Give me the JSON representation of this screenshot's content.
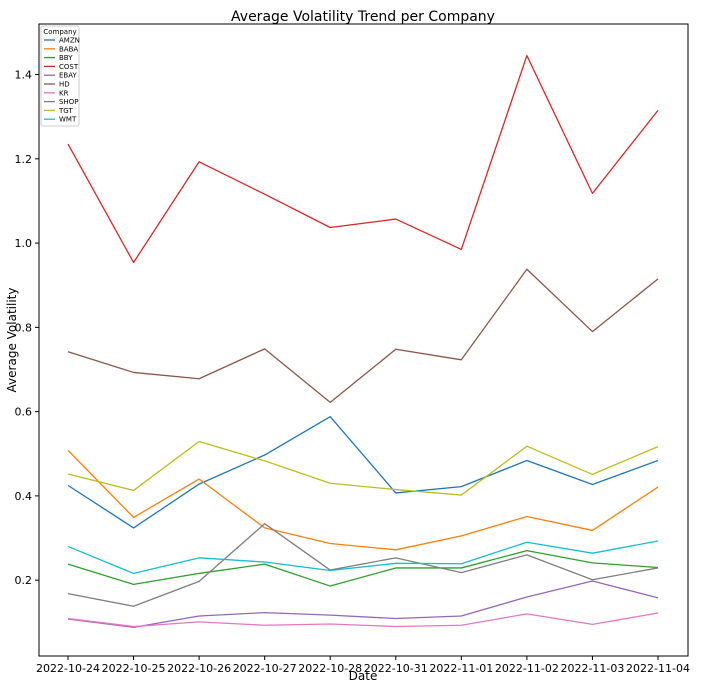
{
  "chart_data": {
    "type": "line",
    "title": "Average Volatility Trend per Company",
    "xlabel": "Date",
    "ylabel": "Average Volatility",
    "categories": [
      "2022-10-24",
      "2022-10-25",
      "2022-10-26",
      "2022-10-27",
      "2022-10-28",
      "2022-10-31",
      "2022-11-01",
      "2022-11-02",
      "2022-11-03",
      "2022-11-04"
    ],
    "ylim": [
      0.02,
      1.52
    ],
    "yticks": [
      0.2,
      0.4,
      0.6,
      0.8,
      1.0,
      1.2,
      1.4
    ],
    "ytick_labels": [
      "0.2",
      "0.4",
      "0.6",
      "0.8",
      "1.0",
      "1.2",
      "1.4"
    ],
    "grid": false,
    "legend": {
      "title": "Company",
      "placement": "top-left"
    },
    "series": [
      {
        "name": "AMZN",
        "color": "#1f77b4",
        "values": [
          0.425,
          0.324,
          0.428,
          0.497,
          0.588,
          0.407,
          0.422,
          0.484,
          0.427,
          0.484
        ]
      },
      {
        "name": "BABA",
        "color": "#ff7f0e",
        "values": [
          0.508,
          0.349,
          0.44,
          0.324,
          0.287,
          0.272,
          0.305,
          0.351,
          0.318,
          0.421
        ]
      },
      {
        "name": "BBY",
        "color": "#2ca02c",
        "values": [
          0.238,
          0.19,
          0.216,
          0.238,
          0.186,
          0.229,
          0.229,
          0.27,
          0.241,
          0.23
        ]
      },
      {
        "name": "COST",
        "color": "#d62728",
        "values": [
          1.235,
          0.954,
          1.193,
          1.116,
          1.037,
          1.057,
          0.985,
          1.445,
          1.118,
          1.315
        ]
      },
      {
        "name": "EBAY",
        "color": "#9467bd",
        "values": [
          0.108,
          0.088,
          0.115,
          0.123,
          0.117,
          0.109,
          0.115,
          0.16,
          0.198,
          0.158
        ]
      },
      {
        "name": "HD",
        "color": "#8c564b",
        "values": [
          0.742,
          0.693,
          0.678,
          0.749,
          0.622,
          0.748,
          0.723,
          0.938,
          0.79,
          0.915
        ]
      },
      {
        "name": "KR",
        "color": "#e377c2",
        "values": [
          0.109,
          0.09,
          0.101,
          0.093,
          0.096,
          0.09,
          0.093,
          0.12,
          0.095,
          0.122
        ]
      },
      {
        "name": "SHOP",
        "color": "#7f7f7f",
        "values": [
          0.168,
          0.138,
          0.197,
          0.334,
          0.224,
          0.253,
          0.218,
          0.26,
          0.201,
          0.229
        ]
      },
      {
        "name": "TGT",
        "color": "#bcbd22",
        "values": [
          0.452,
          0.413,
          0.529,
          0.483,
          0.43,
          0.415,
          0.402,
          0.518,
          0.451,
          0.517
        ]
      },
      {
        "name": "WMT",
        "color": "#17becf",
        "values": [
          0.28,
          0.216,
          0.253,
          0.243,
          0.223,
          0.24,
          0.239,
          0.29,
          0.264,
          0.293
        ]
      }
    ]
  }
}
